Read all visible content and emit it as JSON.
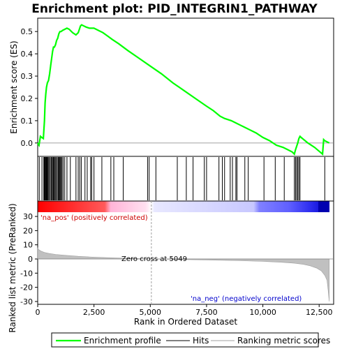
{
  "chart_data": {
    "type": "line",
    "title": "Enrichment plot: PID_INTEGRIN1_PATHWAY",
    "panels": {
      "enrichment": {
        "ylabel": "Enrichment score (ES)",
        "ylim": [
          -0.06,
          0.56
        ],
        "yticks": [
          0.0,
          0.1,
          0.2,
          0.3,
          0.4,
          0.5
        ],
        "color": "#00ff00",
        "series": {
          "name": "Enrichment profile",
          "x": [
            0,
            60,
            120,
            180,
            250,
            300,
            330,
            360,
            390,
            430,
            480,
            530,
            580,
            620,
            660,
            700,
            740,
            790,
            840,
            890,
            940,
            990,
            1040,
            1100,
            1200,
            1300,
            1400,
            1550,
            1700,
            1800,
            1900,
            1950,
            2050,
            2150,
            2300,
            2500,
            2700,
            2900,
            3100,
            3300,
            3600,
            4000,
            4500,
            5000,
            5500,
            6000,
            6500,
            7000,
            7500,
            7800,
            8100,
            8300,
            8600,
            8800,
            9000,
            9200,
            9400,
            9700,
            10000,
            10300,
            10600,
            10900,
            11100,
            11300,
            11400,
            11450,
            11500,
            11550,
            11600,
            11650,
            11700,
            12000,
            12300,
            12650,
            12700,
            12750,
            12850,
            12950
          ],
          "y": [
            0.0,
            -0.01,
            0.03,
            0.025,
            0.02,
            0.1,
            0.18,
            0.22,
            0.25,
            0.27,
            0.28,
            0.31,
            0.35,
            0.38,
            0.41,
            0.43,
            0.43,
            0.44,
            0.46,
            0.47,
            0.49,
            0.5,
            0.5,
            0.505,
            0.51,
            0.515,
            0.51,
            0.495,
            0.485,
            0.495,
            0.525,
            0.53,
            0.525,
            0.52,
            0.515,
            0.515,
            0.505,
            0.495,
            0.48,
            0.465,
            0.445,
            0.415,
            0.38,
            0.345,
            0.31,
            0.27,
            0.235,
            0.2,
            0.165,
            0.145,
            0.12,
            0.11,
            0.1,
            0.09,
            0.08,
            0.07,
            0.06,
            0.045,
            0.025,
            0.01,
            -0.01,
            -0.02,
            -0.03,
            -0.04,
            -0.05,
            -0.03,
            -0.015,
            0.0,
            0.02,
            0.03,
            0.025,
            0.0,
            -0.02,
            -0.05,
            0.015,
            0.01,
            0.005,
            0.0
          ]
        }
      },
      "hits": {
        "positions": [
          70,
          190,
          270,
          290,
          310,
          330,
          360,
          380,
          400,
          420,
          440,
          470,
          510,
          560,
          600,
          640,
          680,
          710,
          740,
          780,
          820,
          870,
          910,
          940,
          970,
          1000,
          1040,
          1080,
          1130,
          1200,
          1300,
          1450,
          1700,
          1800,
          1870,
          1940,
          2100,
          2200,
          2350,
          2400,
          2500,
          2850,
          3250,
          3380,
          3800,
          4880,
          4950,
          5250,
          6200,
          6600,
          6900,
          7400,
          7500,
          8050,
          8200,
          8300,
          8550,
          8650,
          8800,
          8850,
          9200,
          9350,
          10050,
          10550,
          10950,
          11400,
          11450,
          11500,
          11550,
          11600,
          11650,
          12750
        ]
      },
      "metric": {
        "label_pos": "'na_pos' (positively correlated)",
        "label_neg": "'na_neg' (negatively correlated)",
        "zero_cross_label": "Zero cross at 5049",
        "zero_cross": 5049,
        "xlabel": "Rank in Ordered Dataset",
        "ylabel": "Ranked list metric (PreRanked)",
        "ylim": [
          -32,
          33
        ],
        "yticks": [
          -30,
          -20,
          -10,
          0,
          10,
          20,
          30
        ],
        "fill_color": "#c0c0c0",
        "x": [
          0,
          50,
          150,
          300,
          500,
          800,
          1200,
          1800,
          2500,
          3500,
          4500,
          5049,
          6000,
          7500,
          9000,
          10000,
          10800,
          11400,
          11800,
          12100,
          12400,
          12600,
          12750,
          12850,
          12900,
          12950
        ],
        "y": [
          8.0,
          6.5,
          5.5,
          4.6,
          3.9,
          3.2,
          2.6,
          1.9,
          1.3,
          0.7,
          0.25,
          0.0,
          -0.3,
          -0.7,
          -1.2,
          -1.7,
          -2.3,
          -3.0,
          -3.8,
          -4.8,
          -6.5,
          -8.5,
          -11.5,
          -15.0,
          -22.0,
          -30.0
        ]
      }
    },
    "xaxis": {
      "xlim": [
        0,
        12958
      ],
      "xticks": [
        0,
        2500,
        5000,
        7500,
        10000,
        12500
      ],
      "xtick_labels": [
        "0",
        "2,500",
        "5,000",
        "7,500",
        "10,000",
        "12,500"
      ]
    },
    "legend": {
      "placement": "bottom",
      "entries": [
        "Enrichment profile",
        "Hits",
        "Ranking metric scores"
      ],
      "colors": [
        "#00ff00",
        "#000000",
        "#c0c0c0"
      ]
    },
    "colorbar": {
      "pos_color": "#ff0000",
      "neg_color": "#0000ff",
      "zero_color": "#ffffff"
    }
  }
}
